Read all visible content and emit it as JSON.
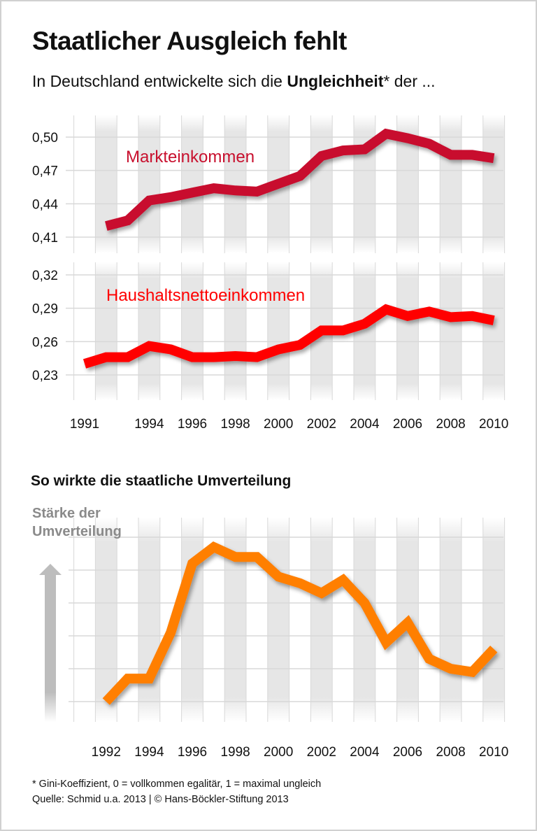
{
  "header": {
    "title": "Staatlicher Ausgleich fehlt",
    "subtitle_pre": "In Deutschland entwickelte sich die ",
    "subtitle_bold": "Ungleichheit",
    "subtitle_post": "* der ..."
  },
  "section2_title": "So wirkte die staatliche Umverteilung",
  "footer": {
    "note": "* Gini-Koeffizient, 0 = vollkommen egalitär, 1 = maximal ungleich",
    "source": "Quelle: Schmid u.a. 2013 | © Hans-Böckler-Stiftung 2013"
  },
  "chart_data": [
    {
      "type": "line",
      "x": [
        1992,
        1993,
        1994,
        1995,
        1996,
        1997,
        1998,
        1999,
        2000,
        2001,
        2002,
        2003,
        2004,
        2005,
        2006,
        2007,
        2008,
        2009,
        2010
      ],
      "series": [
        {
          "name": "Markteinkommen",
          "color": "#c8102e",
          "values": [
            0.42,
            0.425,
            0.443,
            0.446,
            0.45,
            0.454,
            0.452,
            0.451,
            0.458,
            0.465,
            0.483,
            0.488,
            0.489,
            0.503,
            0.499,
            0.494,
            0.484,
            0.484,
            0.481
          ]
        }
      ],
      "yticks": [
        "0,50",
        "0,47",
        "0,44",
        "0,41"
      ],
      "ytick_values": [
        0.5,
        0.47,
        0.44,
        0.41
      ],
      "ylim": [
        0.398,
        0.52
      ],
      "grid": true
    },
    {
      "type": "line",
      "x": [
        1991,
        1992,
        1993,
        1994,
        1995,
        1996,
        1997,
        1998,
        1999,
        2000,
        2001,
        2002,
        2003,
        2004,
        2005,
        2006,
        2007,
        2008,
        2009,
        2010
      ],
      "series": [
        {
          "name": "Haushaltsnettoeinkommen",
          "color": "#ff0000",
          "values": [
            0.24,
            0.246,
            0.246,
            0.256,
            0.253,
            0.246,
            0.246,
            0.247,
            0.246,
            0.253,
            0.257,
            0.27,
            0.27,
            0.276,
            0.289,
            0.283,
            0.287,
            0.282,
            0.283,
            0.279
          ]
        }
      ],
      "yticks": [
        "0,32",
        "0,29",
        "0,26",
        "0,23"
      ],
      "ytick_values": [
        0.32,
        0.29,
        0.26,
        0.23
      ],
      "ylim": [
        0.218,
        0.338
      ],
      "xticks": [
        "1991",
        "1994",
        "1996",
        "1998",
        "2000",
        "2002",
        "2004",
        "2006",
        "2008",
        "2010"
      ],
      "grid": true
    },
    {
      "type": "line",
      "ylabel": [
        "Stärke der",
        "Umverteilung"
      ],
      "x": [
        1992,
        1993,
        1994,
        1995,
        1996,
        1997,
        1998,
        1999,
        2000,
        2001,
        2002,
        2003,
        2004,
        2005,
        2006,
        2007,
        2008,
        2009,
        2010
      ],
      "series": [
        {
          "color": "#ff7f00",
          "values": [
            0.0,
            0.7,
            0.7,
            2.1,
            4.2,
            4.7,
            4.4,
            4.4,
            3.8,
            3.6,
            3.3,
            3.7,
            3.0,
            1.8,
            2.4,
            1.3,
            1.0,
            0.9,
            1.6
          ]
        }
      ],
      "gridlines": 6,
      "ylim": [
        -0.6,
        5.6
      ],
      "xticks": [
        "1992",
        "1994",
        "1996",
        "1998",
        "2000",
        "2002",
        "2004",
        "2006",
        "2008",
        "2010"
      ],
      "grid": true
    }
  ]
}
